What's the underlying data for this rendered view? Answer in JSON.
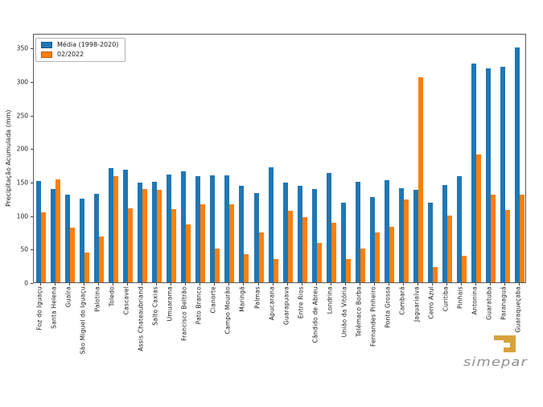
{
  "legend": {
    "items": [
      {
        "label": "Média (1998-2020)",
        "color": "#1f77b4"
      },
      {
        "label": "02/2022",
        "color": "#ff7f0e"
      }
    ]
  },
  "logo": {
    "text": "simepar",
    "accent_color": "#d7a23c",
    "text_color": "#8e8e8e"
  },
  "chart_data": {
    "type": "bar",
    "ylabel": "Precipitação Acumulada (mm)",
    "xlabel": "",
    "ylim": [
      0,
      372
    ],
    "yticks": [
      0,
      50,
      100,
      150,
      200,
      250,
      300,
      350
    ],
    "grid": false,
    "legend_position": "upper left",
    "categories": [
      "Foz do Iguaçu",
      "Santa Helena",
      "Guaíra",
      "São Miguel do Iguaçu",
      "Palotina",
      "Toledo",
      "Cascavel",
      "Assis Chateaubriand",
      "Salto Caxias",
      "Umuarama",
      "Francisco Beltrão",
      "Pato Branco",
      "Cianorte",
      "Campo Mourão",
      "Maringá",
      "Palmas",
      "Apucarana",
      "Guarapuava",
      "Entre Rios",
      "Cândido de Abreu",
      "Londrina",
      "União da Vitória",
      "Telêmaco Borba",
      "Fernandes Pinheiro",
      "Ponta Grossa",
      "Cambará",
      "Jaguariaíva",
      "Cerro Azul",
      "Curitiba",
      "Pinhais",
      "Antonina",
      "Guaratuba",
      "Paranaguá",
      "Guaraqueçaba"
    ],
    "series": [
      {
        "name": "Média (1998-2020)",
        "color": "#1f77b4",
        "values": [
          151,
          139,
          131,
          125,
          132,
          171,
          168,
          149,
          150,
          161,
          166,
          158,
          160,
          160,
          144,
          133,
          172,
          149,
          144,
          139,
          163,
          119,
          150,
          127,
          153,
          141,
          138,
          119,
          145,
          159,
          326,
          319,
          322,
          350
        ]
      },
      {
        "name": "02/2022",
        "color": "#ff7f0e",
        "values": [
          104,
          154,
          82,
          45,
          69,
          159,
          110,
          139,
          138,
          109,
          86,
          116,
          50,
          116,
          42,
          74,
          35,
          107,
          97,
          59,
          89,
          35,
          51,
          74,
          83,
          124,
          306,
          23,
          100,
          40,
          191,
          131,
          108,
          131
        ]
      }
    ]
  }
}
